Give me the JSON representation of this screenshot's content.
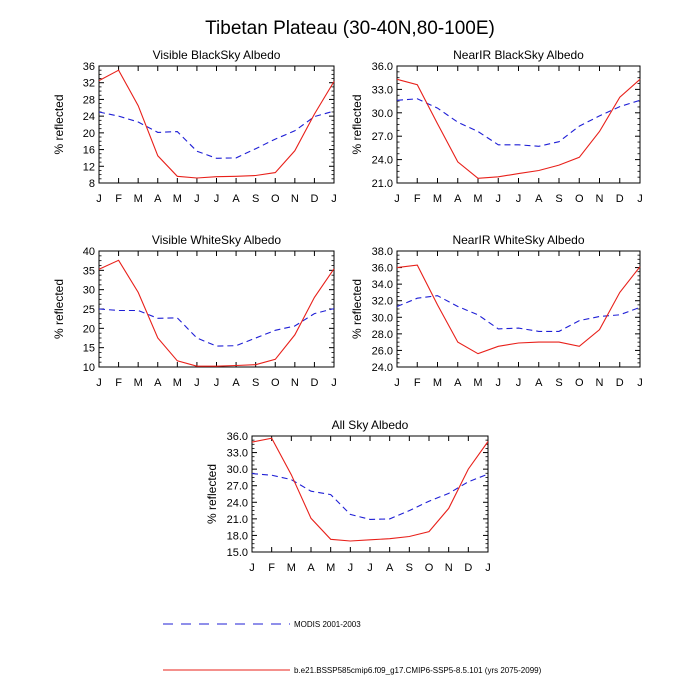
{
  "figure": {
    "title": "Tibetan Plateau (30-40N,80-100E)",
    "legend": [
      {
        "label": "MODIS 2001-2003",
        "color": "#1f1fd6",
        "dash": "dashed"
      },
      {
        "label": "b.e21.BSSP585cmip6.f09_g17.CMIP6-SSP5-8.5.101 (yrs 2075-2099)",
        "color": "#e8201a",
        "dash": "solid"
      }
    ]
  },
  "chart_data": [
    {
      "type": "line",
      "title": "Visible BlackSky Albedo",
      "ylabel": "% reflected",
      "categories": [
        "J",
        "F",
        "M",
        "A",
        "M",
        "J",
        "J",
        "A",
        "S",
        "O",
        "N",
        "D",
        "J"
      ],
      "ylim": [
        8,
        36
      ],
      "yticks": [
        "8",
        "12",
        "16",
        "20",
        "24",
        "28",
        "32",
        "36"
      ],
      "series": [
        {
          "name": "MODIS 2001-2003",
          "color": "#1f1fd6",
          "dash": "dashed",
          "values": [
            25.0,
            24.0,
            22.6,
            20.1,
            20.3,
            15.6,
            13.9,
            14.0,
            16.2,
            18.5,
            20.5,
            23.9,
            25.2
          ]
        },
        {
          "name": "b.e21.BSSP585cmip6.f09_g17.CMIP6-SSP5-8.5.101 (yrs 2075-2099)",
          "color": "#e8201a",
          "dash": "solid",
          "values": [
            32.5,
            35.0,
            26.5,
            14.5,
            9.6,
            9.2,
            9.5,
            9.6,
            9.8,
            10.5,
            15.7,
            24.5,
            32.3
          ]
        }
      ]
    },
    {
      "type": "line",
      "title": "NearIR BlackSky Albedo",
      "ylabel": "% reflected",
      "categories": [
        "J",
        "F",
        "M",
        "A",
        "M",
        "J",
        "J",
        "A",
        "S",
        "O",
        "N",
        "D",
        "J"
      ],
      "ylim": [
        21,
        36
      ],
      "yticks": [
        "21.0",
        "24.0",
        "27.0",
        "30.0",
        "33.0",
        "36.0"
      ],
      "series": [
        {
          "name": "MODIS 2001-2003",
          "color": "#1f1fd6",
          "dash": "dashed",
          "values": [
            31.6,
            31.8,
            30.6,
            28.8,
            27.6,
            25.9,
            25.9,
            25.7,
            26.3,
            28.3,
            29.6,
            30.8,
            31.6
          ]
        },
        {
          "name": "b.e21.BSSP585cmip6.f09_g17.CMIP6-SSP5-8.5.101 (yrs 2075-2099)",
          "color": "#e8201a",
          "dash": "solid",
          "values": [
            34.3,
            33.6,
            28.6,
            23.7,
            21.6,
            21.8,
            22.2,
            22.6,
            23.3,
            24.3,
            27.6,
            32.0,
            34.3
          ]
        }
      ]
    },
    {
      "type": "line",
      "title": "Visible WhiteSky Albedo",
      "ylabel": "% reflected",
      "categories": [
        "J",
        "F",
        "M",
        "A",
        "M",
        "J",
        "J",
        "A",
        "S",
        "O",
        "N",
        "D",
        "J"
      ],
      "ylim": [
        10,
        40
      ],
      "yticks": [
        "10",
        "15",
        "20",
        "25",
        "30",
        "35",
        "40"
      ],
      "series": [
        {
          "name": "MODIS 2001-2003",
          "color": "#1f1fd6",
          "dash": "dashed",
          "values": [
            25.0,
            24.6,
            24.6,
            22.6,
            22.7,
            17.5,
            15.4,
            15.5,
            17.5,
            19.5,
            20.6,
            23.8,
            25.1
          ]
        },
        {
          "name": "b.e21.BSSP585cmip6.f09_g17.CMIP6-SSP5-8.5.101 (yrs 2075-2099)",
          "color": "#e8201a",
          "dash": "solid",
          "values": [
            35.3,
            37.6,
            29.3,
            17.5,
            11.6,
            10.2,
            10.2,
            10.4,
            10.6,
            12.0,
            18.3,
            28.0,
            35.4
          ]
        }
      ]
    },
    {
      "type": "line",
      "title": "NearIR WhiteSky Albedo",
      "ylabel": "% reflected",
      "categories": [
        "J",
        "F",
        "M",
        "A",
        "M",
        "J",
        "J",
        "A",
        "S",
        "O",
        "N",
        "D",
        "J"
      ],
      "ylim": [
        24,
        38
      ],
      "yticks": [
        "24.0",
        "26.0",
        "28.0",
        "30.0",
        "32.0",
        "34.0",
        "36.0",
        "38.0"
      ],
      "series": [
        {
          "name": "MODIS 2001-2003",
          "color": "#1f1fd6",
          "dash": "dashed",
          "values": [
            31.3,
            32.3,
            32.6,
            31.3,
            30.3,
            28.6,
            28.7,
            28.3,
            28.3,
            29.6,
            30.1,
            30.3,
            31.2
          ]
        },
        {
          "name": "b.e21.BSSP585cmip6.f09_g17.CMIP6-SSP5-8.5.101 (yrs 2075-2099)",
          "color": "#e8201a",
          "dash": "solid",
          "values": [
            36.0,
            36.3,
            31.5,
            27.0,
            25.6,
            26.5,
            26.9,
            27.0,
            27.0,
            26.5,
            28.5,
            33.0,
            36.1
          ]
        }
      ]
    },
    {
      "type": "line",
      "title": "All Sky Albedo",
      "ylabel": "% reflected",
      "categories": [
        "J",
        "F",
        "M",
        "A",
        "M",
        "J",
        "J",
        "A",
        "S",
        "O",
        "N",
        "D",
        "J"
      ],
      "ylim": [
        15,
        36
      ],
      "yticks": [
        "15.0",
        "18.0",
        "21.0",
        "24.0",
        "27.0",
        "30.0",
        "33.0",
        "36.0"
      ],
      "series": [
        {
          "name": "MODIS 2001-2003",
          "color": "#1f1fd6",
          "dash": "dashed",
          "values": [
            29.2,
            28.9,
            28.1,
            26.0,
            25.4,
            21.8,
            20.9,
            21.0,
            22.5,
            24.2,
            25.6,
            27.7,
            29.1
          ]
        },
        {
          "name": "b.e21.BSSP585cmip6.f09_g17.CMIP6-SSP5-8.5.101 (yrs 2075-2099)",
          "color": "#e8201a",
          "dash": "solid",
          "values": [
            34.9,
            35.6,
            29.0,
            21.1,
            17.3,
            17.0,
            17.2,
            17.4,
            17.8,
            18.7,
            22.9,
            30.0,
            35.0
          ]
        }
      ]
    }
  ]
}
